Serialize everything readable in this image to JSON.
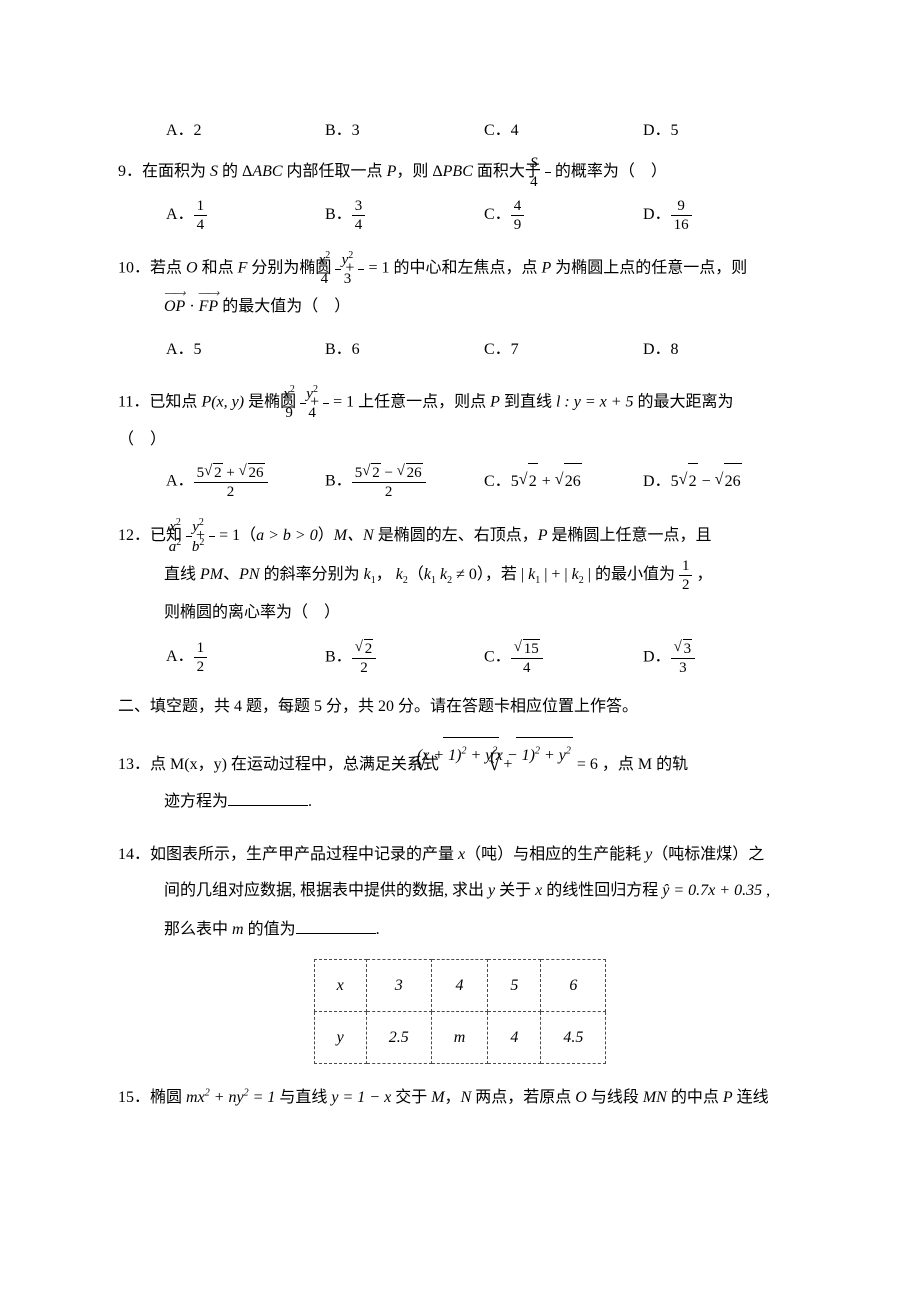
{
  "q8": {
    "options": [
      "A．2",
      "B．3",
      "C．4",
      "D．5"
    ]
  },
  "q9": {
    "num": "9．",
    "stem_a": "在面积为 ",
    "s_var": "S",
    "stem_b": " 的 Δ",
    "abc": "ABC",
    "stem_c": " 内部任取一点 ",
    "p_var": "P",
    "stem_d": "，则 Δ",
    "pbc": "PBC",
    "stem_e": " 面积大于 ",
    "frac_num": "S",
    "frac_den": "4",
    "stem_f": " 的概率为（　）",
    "opt_a": "A．",
    "opt_b": "B．",
    "opt_c": "C．",
    "opt_d": "D．",
    "a_num": "1",
    "a_den": "4",
    "b_num": "3",
    "b_den": "4",
    "c_num": "4",
    "c_den": "9",
    "d_num": "9",
    "d_den": "16"
  },
  "q10": {
    "num": "10．",
    "stem_a": "若点 ",
    "o_var": "O",
    "stem_b": " 和点 ",
    "f_var": "F",
    "stem_c": " 分别为椭圆 ",
    "x2": "x",
    "y2": "y",
    "den1": "4",
    "den2": "3",
    "eq1": " = 1",
    "stem_d": " 的中心和左焦点，点 ",
    "p_var": "P",
    "stem_e": " 为椭圆上点的任意一点，则",
    "op": "OP",
    "fp": "FP",
    "stem_f": " 的最大值为（　）",
    "options": [
      "A．5",
      "B．6",
      "C．7",
      "D．8"
    ]
  },
  "q11": {
    "num": "11．",
    "stem_a": "已知点 ",
    "pxy": "P",
    "paren": "(x, y)",
    "stem_b": " 是椭圆 ",
    "x2": "x",
    "y2": "y",
    "den1": "9",
    "den2": "4",
    "eq1": " = 1",
    "stem_c": " 上任意一点，则点 ",
    "p_var": "P",
    "stem_d": " 到直线 ",
    "l_var": "l",
    "line_eq": " : y = x + 5",
    "stem_e": " 的最大距离为",
    "paren2": "（　）",
    "opt_a": "A．",
    "opt_b": "B．",
    "opt_c": "C．",
    "opt_d": "D．",
    "a_num": "5√2 + √26",
    "a_den": "2",
    "b_num": "5√2 − √26",
    "b_den": "2",
    "c_val": "5√2 + √26",
    "d_val": "5√2 − √26"
  },
  "q12": {
    "num": "12．",
    "stem_a": "已知 ",
    "x2": "x",
    "y2": "y",
    "a2": "a",
    "b2": "b",
    "eq1": " = 1（",
    "cond": "a > b > 0",
    "stem_b": "）",
    "mn": "M、N",
    "stem_c": " 是椭圆的左、右顶点，",
    "p_var": "P",
    "stem_d": " 是椭圆上任意一点，且",
    "line2_a": "直线 ",
    "pm": "PM",
    "pn": "PN",
    "line2_b": "、",
    "line2_c": " 的斜率分别为 ",
    "k1": "k",
    "comma": "，",
    "k2": "k",
    "line2_d": "（",
    "k1k2": "k₁ k₂ ≠ 0",
    "line2_e": "），若 | ",
    "line2_f": " | + | ",
    "line2_g": " | 的最小值为 ",
    "half_num": "1",
    "half_den": "2",
    "line2_h": " ，",
    "line3": "则椭圆的离心率为（　）",
    "opt_a": "A．",
    "opt_b": "B．",
    "opt_c": "C．",
    "opt_d": "D．",
    "a_num": "1",
    "a_den": "2",
    "b_num": "√2",
    "b_den": "2",
    "c_num": "√15",
    "c_den": "4",
    "d_num": "√3",
    "d_den": "3"
  },
  "section2": "二、填空题，共 4 题，每题 5 分，共 20 分。请在答题卡相应位置上作答。",
  "q13": {
    "num": "13．",
    "stem_a": "点 M(x，y) 在运动过程中，总满足关系式 ",
    "rad1": "(x + 1)² + y²",
    "plus": " + ",
    "rad2": "(x − 1)² + y²",
    "eq": " = 6",
    "stem_b": " ，点 M 的轨",
    "line2": "迹方程为",
    "period": "."
  },
  "q14": {
    "num": "14．",
    "stem_a": "如图表所示，生产甲产品过程中记录的产量 ",
    "x_var": "x",
    "stem_b": "（吨）与相应的生产能耗 ",
    "y_var": "y",
    "stem_c": "（吨标准煤）之",
    "line2_a": "间的几组对应数据, 根据表中提供的数据, 求出 ",
    "line2_b": " 关于 ",
    "line2_c": " 的线性回归方程 ",
    "yhat": "ŷ",
    "reg_eq": " = 0.7x + 0.35",
    "line2_d": " ,",
    "line3_a": "那么表中 ",
    "m_var": "m",
    "line3_b": " 的值为",
    "period": ".",
    "table": {
      "header": [
        "x",
        "3",
        "4",
        "5",
        "6"
      ],
      "row": [
        "y",
        "2.5",
        "m",
        "4",
        "4.5"
      ]
    }
  },
  "q15": {
    "num": "15．",
    "stem_a": "椭圆 ",
    "eq": "mx² + ny² = 1",
    "stem_b": " 与直线 ",
    "line": "y = 1 − x",
    "stem_c": " 交于 ",
    "m_var": "M",
    "comma": "，",
    "n_var": "N",
    "stem_d": " 两点，若原点 ",
    "o_var": "O",
    "stem_e": " 与线段 ",
    "mn": "MN",
    "stem_f": " 的中点 ",
    "p_var": "P",
    "stem_g": " 连线"
  }
}
